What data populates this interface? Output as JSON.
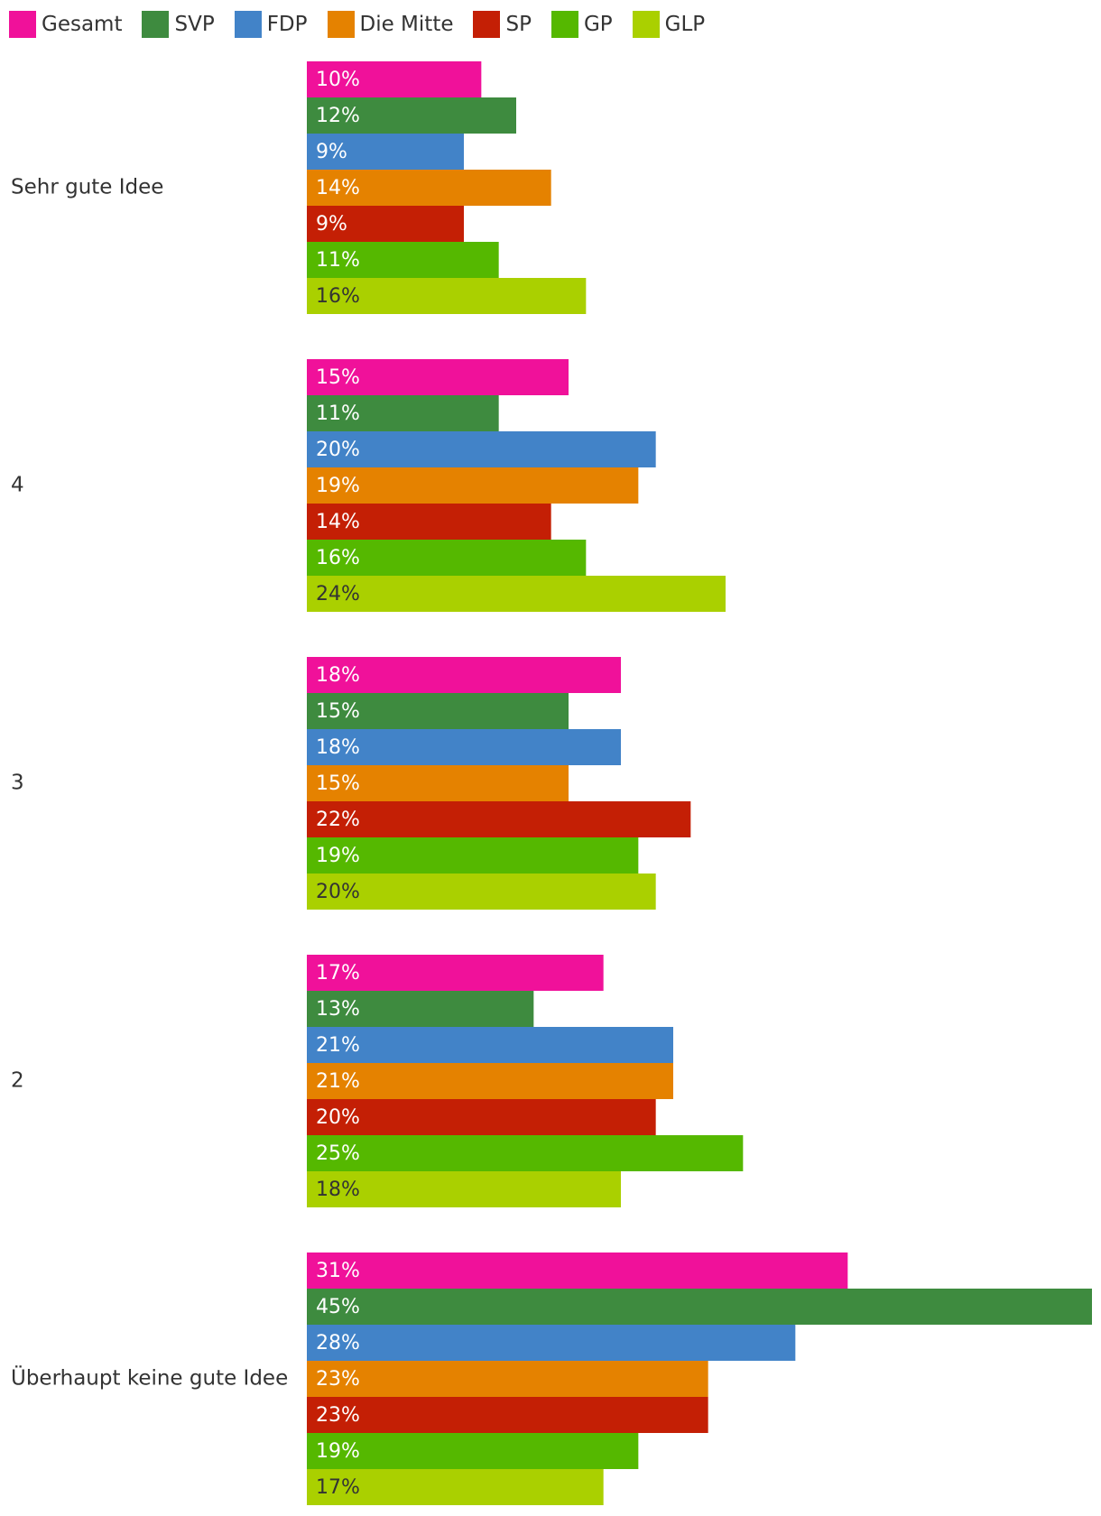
{
  "chart_data": {
    "type": "bar",
    "orientation": "horizontal",
    "categories": [
      "Sehr gute Idee",
      "4",
      "3",
      "2",
      "Überhaupt keine gute Idee"
    ],
    "series": [
      {
        "name": "Gesamt",
        "color": "#f0119a",
        "label_color": "#ffffff",
        "values": [
          10,
          15,
          18,
          17,
          31
        ]
      },
      {
        "name": "SVP",
        "color": "#3e8b3f",
        "label_color": "#ffffff",
        "values": [
          12,
          11,
          15,
          13,
          45
        ]
      },
      {
        "name": "FDP",
        "color": "#4283c8",
        "label_color": "#ffffff",
        "values": [
          9,
          20,
          18,
          21,
          28
        ]
      },
      {
        "name": "Die Mitte",
        "color": "#e58200",
        "label_color": "#ffffff",
        "values": [
          14,
          19,
          15,
          21,
          23
        ]
      },
      {
        "name": "SP",
        "color": "#c41f05",
        "label_color": "#ffffff",
        "values": [
          9,
          14,
          22,
          20,
          23
        ]
      },
      {
        "name": "GP",
        "color": "#55b800",
        "label_color": "#ffffff",
        "values": [
          11,
          16,
          19,
          25,
          19
        ]
      },
      {
        "name": "GLP",
        "color": "#aad000",
        "label_color": "#333333",
        "values": [
          16,
          24,
          20,
          18,
          17
        ]
      }
    ],
    "value_suffix": "%",
    "xlim": [
      0,
      45
    ],
    "grid": false,
    "legend_position": "top-left"
  }
}
